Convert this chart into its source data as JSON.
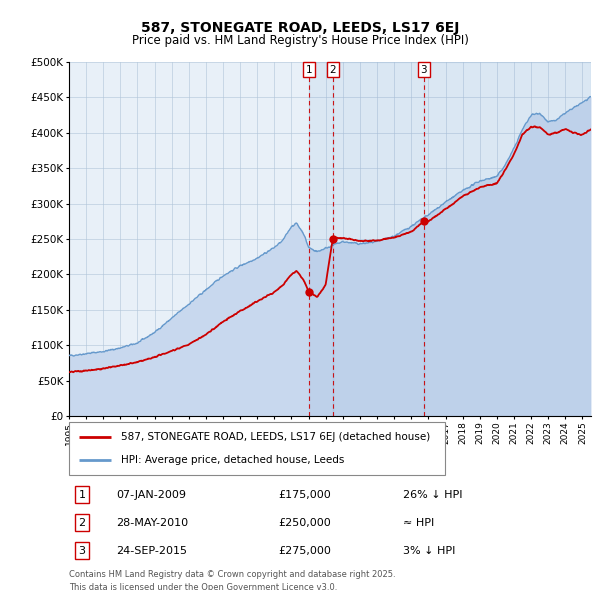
{
  "title": "587, STONEGATE ROAD, LEEDS, LS17 6EJ",
  "subtitle": "Price paid vs. HM Land Registry's House Price Index (HPI)",
  "legend_line1": "587, STONEGATE ROAD, LEEDS, LS17 6EJ (detached house)",
  "legend_line2": "HPI: Average price, detached house, Leeds",
  "footer1": "Contains HM Land Registry data © Crown copyright and database right 2025.",
  "footer2": "This data is licensed under the Open Government Licence v3.0.",
  "sale_color": "#cc0000",
  "hpi_color": "#6699cc",
  "hpi_fill_color": "#c8d8ee",
  "plot_bg": "#e8f0f8",
  "sale_points": [
    {
      "label": "1",
      "date": "07-JAN-2009",
      "price": 175000,
      "x": 2009.03
    },
    {
      "label": "2",
      "date": "28-MAY-2010",
      "price": 250000,
      "x": 2010.41
    },
    {
      "label": "3",
      "date": "24-SEP-2015",
      "price": 275000,
      "x": 2015.73
    }
  ],
  "sale_annotations": [
    {
      "label": "1",
      "date": "07-JAN-2009",
      "price": "£175,000",
      "note": "26% ↓ HPI"
    },
    {
      "label": "2",
      "date": "28-MAY-2010",
      "price": "£250,000",
      "note": "≈ HPI"
    },
    {
      "label": "3",
      "date": "24-SEP-2015",
      "price": "£275,000",
      "note": "3% ↓ HPI"
    }
  ],
  "ylim": [
    0,
    500000
  ],
  "yticks": [
    0,
    50000,
    100000,
    150000,
    200000,
    250000,
    300000,
    350000,
    400000,
    450000,
    500000
  ],
  "xmin": 1995.0,
  "xmax": 2025.5,
  "hpi_anchors_x": [
    1995.0,
    1996.0,
    1997.0,
    1998.0,
    1999.0,
    2000.0,
    2001.0,
    2002.0,
    2003.0,
    2004.0,
    2005.0,
    2006.0,
    2007.0,
    2007.5,
    2008.0,
    2008.3,
    2008.7,
    2009.0,
    2009.5,
    2010.0,
    2010.5,
    2011.0,
    2012.0,
    2013.0,
    2014.0,
    2015.0,
    2016.0,
    2017.0,
    2018.0,
    2019.0,
    2020.0,
    2020.5,
    2021.0,
    2021.5,
    2022.0,
    2022.5,
    2023.0,
    2023.5,
    2024.0,
    2024.5,
    2025.0,
    2025.5
  ],
  "hpi_anchors_y": [
    85000,
    88000,
    91000,
    96000,
    103000,
    118000,
    138000,
    158000,
    178000,
    198000,
    212000,
    223000,
    238000,
    248000,
    268000,
    272000,
    258000,
    238000,
    232000,
    237000,
    242000,
    246000,
    243000,
    246000,
    254000,
    268000,
    284000,
    302000,
    318000,
    332000,
    338000,
    355000,
    378000,
    405000,
    425000,
    428000,
    415000,
    418000,
    428000,
    435000,
    443000,
    450000
  ],
  "red_anchors_x": [
    1995.0,
    1996.0,
    1997.0,
    1998.0,
    1999.0,
    2000.0,
    2001.0,
    2002.0,
    2003.0,
    2004.0,
    2005.0,
    2006.0,
    2007.0,
    2007.5,
    2008.0,
    2008.3,
    2008.7,
    2009.03,
    2009.5,
    2009.8,
    2010.0,
    2010.41,
    2010.6,
    2011.0,
    2012.0,
    2013.0,
    2014.0,
    2015.0,
    2015.73,
    2016.0,
    2017.0,
    2018.0,
    2019.0,
    2020.0,
    2020.5,
    2021.0,
    2021.5,
    2022.0,
    2022.5,
    2023.0,
    2023.5,
    2024.0,
    2024.5,
    2025.0,
    2025.5
  ],
  "red_anchors_y": [
    62000,
    64000,
    67000,
    71000,
    76000,
    83000,
    92000,
    101000,
    115000,
    133000,
    148000,
    162000,
    175000,
    185000,
    200000,
    205000,
    192000,
    175000,
    168000,
    178000,
    186000,
    250000,
    252000,
    251000,
    247000,
    248000,
    252000,
    260000,
    275000,
    275000,
    292000,
    310000,
    323000,
    328000,
    348000,
    370000,
    398000,
    408000,
    408000,
    398000,
    400000,
    405000,
    400000,
    397000,
    405000
  ]
}
